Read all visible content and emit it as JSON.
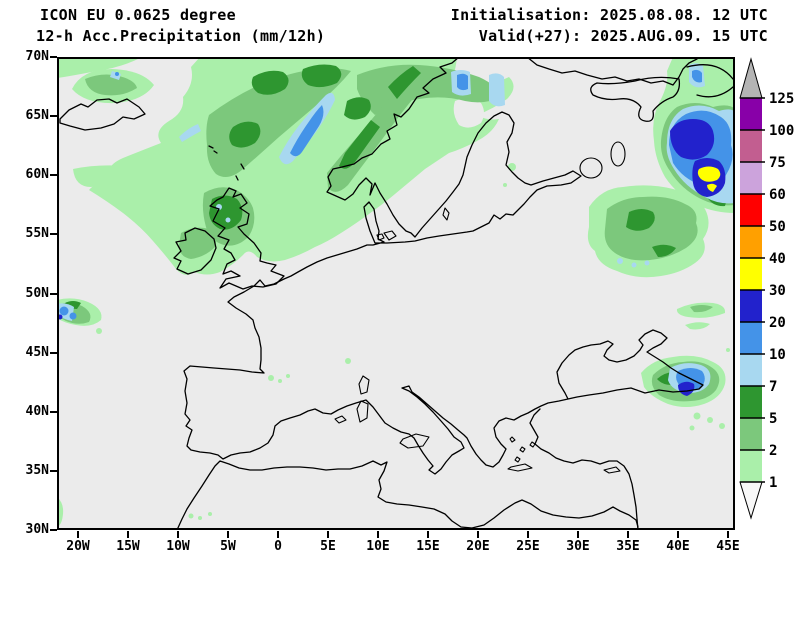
{
  "header": {
    "model_line": "ICON EU 0.0625 degree",
    "product_line": "12-h Acc.Precipitation (mm/12h)",
    "init_line": "Initialisation: 2025.08.08. 12 UTC",
    "valid_line": "Valid(+27): 2025.AUG.09. 15 UTC"
  },
  "map": {
    "lat_labels": [
      "70N",
      "65N",
      "60N",
      "55N",
      "50N",
      "45N",
      "40N",
      "35N",
      "30N"
    ],
    "lon_labels": [
      "20W",
      "15W",
      "10W",
      "5W",
      "0",
      "5E",
      "10E",
      "15E",
      "20E",
      "25E",
      "30E",
      "35E",
      "40E",
      "45E"
    ],
    "background_color": "#EBEBEB",
    "coastline_color": "#000000",
    "precip_regions": [
      {
        "region": "North Atlantic / Norwegian Sea / Scandinavia",
        "intensity_mm": "1-20"
      },
      {
        "region": "Iceland",
        "intensity_mm": "1-10"
      },
      {
        "region": "Scotland and Northern Ireland",
        "intensity_mm": "2-10"
      },
      {
        "region": "Northwest Russia near 40E 58-63N",
        "intensity_mm": "10-50"
      },
      {
        "region": "Western Russia 33-40E 55-58N",
        "intensity_mm": "1-7"
      },
      {
        "region": "Eastern Black Sea / Georgia coast",
        "intensity_mm": "5-30"
      },
      {
        "region": "Mid-Atlantic near 20W 47-49N",
        "intensity_mm": "1-20"
      },
      {
        "region": "North of Sea of Azov",
        "intensity_mm": "1-5"
      }
    ]
  },
  "legend": {
    "unit": "mm/12h",
    "boundaries": [
      "1",
      "2",
      "5",
      "7",
      "10",
      "20",
      "30",
      "40",
      "50",
      "60",
      "75",
      "100",
      "125"
    ],
    "segment_colors": [
      "#AAEFAA",
      "#7CC87C",
      "#2E9630",
      "#A8D8F0",
      "#4493E8",
      "#2222CC",
      "#FFFF00",
      "#FFA000",
      "#FF0000",
      "#CCA3DC",
      "#C25E90",
      "#8800A8"
    ],
    "under_arrow_color": "#F8F8F8",
    "over_arrow_color": "#B4B4B4"
  }
}
